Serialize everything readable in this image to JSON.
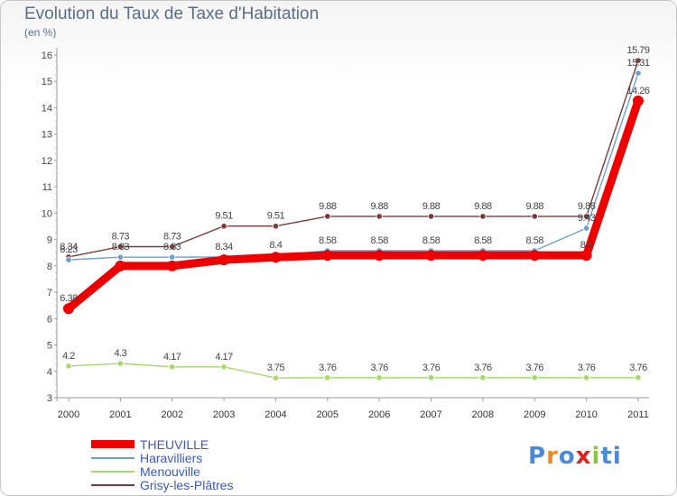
{
  "title": "Evolution du Taux de Taxe d'Habitation",
  "subtitle": "(en %)",
  "logo": {
    "text": "Proxiti",
    "letter_colors": [
      "#4a8ad8",
      "#f28c1c",
      "#4a8ad8",
      "#e02222",
      "#8cc63f",
      "#4a8ad8",
      "#4a8ad8"
    ]
  },
  "chart_data": {
    "type": "line",
    "x": [
      "2000",
      "2001",
      "2002",
      "2003",
      "2004",
      "2005",
      "2006",
      "2007",
      "2008",
      "2009",
      "2010",
      "2011"
    ],
    "ylim": [
      3,
      16
    ],
    "yticks": [
      "3",
      "4",
      "5",
      "6",
      "7",
      "8",
      "9",
      "10",
      "11",
      "12",
      "13",
      "14",
      "15",
      "16"
    ],
    "grid": false,
    "legend_position": "bottom-left",
    "series": [
      {
        "name": "THEUVILLE",
        "color": "#ee0000",
        "values": [
          6.38,
          8,
          8,
          8.23,
          8.33,
          8.4,
          8.4,
          8.4,
          8.4,
          8.4,
          8.4,
          14.26
        ],
        "labels": [
          "6.38",
          "",
          "",
          "",
          "",
          "",
          "",
          "",
          "",
          "",
          "8.4",
          "14.26"
        ]
      },
      {
        "name": "Haravilliers",
        "color": "#6b9fd0",
        "values": [
          8.23,
          8.33,
          8.33,
          8.34,
          8.4,
          8.58,
          8.58,
          8.58,
          8.58,
          8.58,
          9.43,
          15.31
        ],
        "labels": [
          "8.23",
          "8.33",
          "8.33",
          "8.34",
          "8.4",
          "8.58",
          "8.58",
          "8.58",
          "8.58",
          "8.58",
          "9.43",
          "15.31"
        ]
      },
      {
        "name": "Menouville",
        "color": "#a6d96a",
        "values": [
          4.2,
          4.3,
          4.17,
          4.17,
          3.75,
          3.76,
          3.76,
          3.76,
          3.76,
          3.76,
          3.76,
          3.76
        ],
        "labels": [
          "4.2",
          "4.3",
          "4.17",
          "4.17",
          "3.75",
          "3.76",
          "3.76",
          "3.76",
          "3.76",
          "3.76",
          "3.76",
          "3.76"
        ]
      },
      {
        "name": "Grisy-les-Plâtres",
        "color": "#7a3a3a",
        "values": [
          8.34,
          8.73,
          8.73,
          9.51,
          9.51,
          9.88,
          9.88,
          9.88,
          9.88,
          9.88,
          9.88,
          15.79
        ],
        "labels": [
          "8.34",
          "8.73",
          "8.73",
          "9.51",
          "9.51",
          "9.88",
          "9.88",
          "9.88",
          "9.88",
          "9.88",
          "9.88",
          "15.79"
        ]
      }
    ]
  }
}
